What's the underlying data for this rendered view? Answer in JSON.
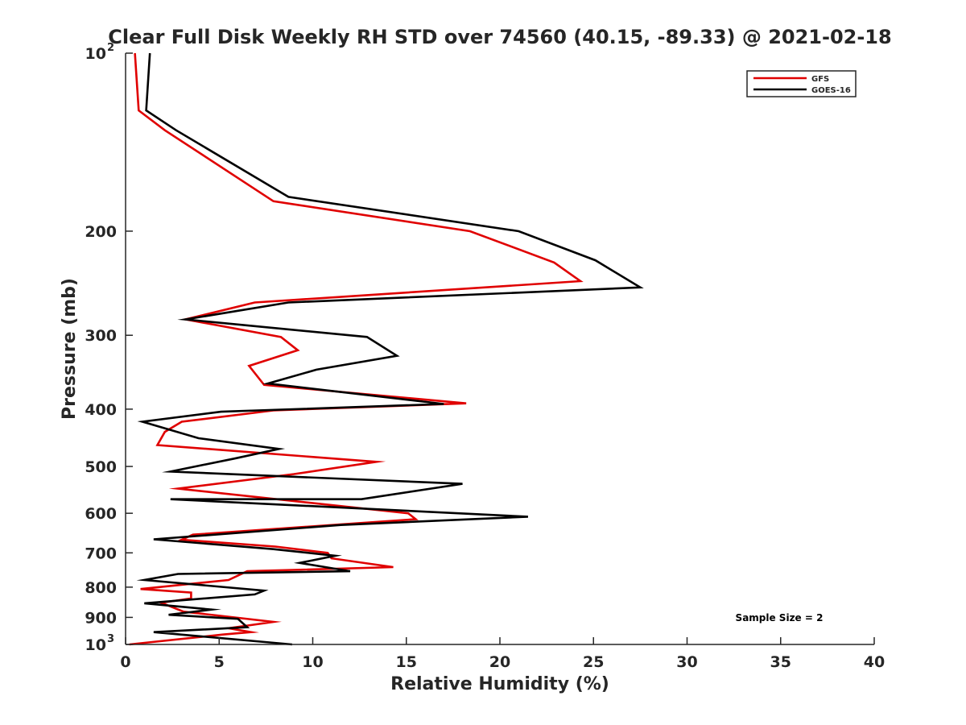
{
  "chart_data": {
    "type": "line",
    "title": "Clear Full Disk Weekly RH STD over 74560 (40.15, -89.33) @ 2021-02-18",
    "xlabel": "Relative Humidity (%)",
    "ylabel": "Pressure (mb)",
    "xlim": [
      0,
      40
    ],
    "ylim": [
      100,
      1000
    ],
    "y_scale": "log",
    "y_reversed": true,
    "grid": false,
    "x_ticks": [
      0,
      5,
      10,
      15,
      20,
      25,
      30,
      35,
      40
    ],
    "y_ticks": [
      {
        "value": 100,
        "base": "10",
        "exp": "2"
      },
      {
        "value": 200,
        "label": "200"
      },
      {
        "value": 300,
        "label": "300"
      },
      {
        "value": 400,
        "label": "400"
      },
      {
        "value": 500,
        "label": "500"
      },
      {
        "value": 600,
        "label": "600"
      },
      {
        "value": 700,
        "label": "700"
      },
      {
        "value": 800,
        "label": "800"
      },
      {
        "value": 900,
        "label": "900"
      },
      {
        "value": 1000,
        "base": "10",
        "exp": "3"
      }
    ],
    "legend_position": "top-right",
    "annotation": "Sample Size = 2",
    "series": [
      {
        "name": "GFS",
        "color": "#e00000",
        "points": [
          [
            0.5,
            100
          ],
          [
            0.7,
            125
          ],
          [
            2.1,
            135
          ],
          [
            7.9,
            178
          ],
          [
            18.4,
            200
          ],
          [
            22.9,
            226
          ],
          [
            24.3,
            243
          ],
          [
            6.9,
            264
          ],
          [
            3.2,
            282
          ],
          [
            8.3,
            302
          ],
          [
            9.2,
            318
          ],
          [
            6.6,
            338
          ],
          [
            7.4,
            364
          ],
          [
            18.2,
            391
          ],
          [
            7.9,
            402
          ],
          [
            3.0,
            420
          ],
          [
            2.1,
            437
          ],
          [
            1.7,
            460
          ],
          [
            13.4,
            491
          ],
          [
            9.0,
            515
          ],
          [
            2.8,
            545
          ],
          [
            15.1,
            600
          ],
          [
            15.5,
            614
          ],
          [
            3.6,
            652
          ],
          [
            3.0,
            665
          ],
          [
            8.0,
            683
          ],
          [
            10.8,
            700
          ],
          [
            11.0,
            715
          ],
          [
            14.3,
            740
          ],
          [
            6.5,
            752
          ],
          [
            5.5,
            778
          ],
          [
            0.8,
            806
          ],
          [
            3.5,
            817
          ],
          [
            3.5,
            836
          ],
          [
            1.9,
            850
          ],
          [
            3.1,
            880
          ],
          [
            7.9,
            916
          ],
          [
            5.5,
            939
          ],
          [
            6.7,
            953
          ],
          [
            5.2,
            962
          ],
          [
            0.2,
            1000
          ]
        ]
      },
      {
        "name": "GOES-16",
        "color": "#000000",
        "points": [
          [
            1.3,
            100
          ],
          [
            1.1,
            125
          ],
          [
            2.7,
            135
          ],
          [
            8.7,
            175
          ],
          [
            21.0,
            200
          ],
          [
            25.1,
            224
          ],
          [
            27.5,
            249
          ],
          [
            8.7,
            264
          ],
          [
            3.2,
            282
          ],
          [
            12.9,
            302
          ],
          [
            14.5,
            325
          ],
          [
            10.2,
            343
          ],
          [
            7.6,
            362
          ],
          [
            17.0,
            392
          ],
          [
            5.1,
            404
          ],
          [
            0.9,
            420
          ],
          [
            3.9,
            448
          ],
          [
            8.2,
            467
          ],
          [
            5.8,
            485
          ],
          [
            2.4,
            510
          ],
          [
            18.0,
            535
          ],
          [
            12.6,
            568
          ],
          [
            2.4,
            568
          ],
          [
            21.5,
            608
          ],
          [
            11.5,
            628
          ],
          [
            1.5,
            664
          ],
          [
            7.9,
            690
          ],
          [
            11.2,
            708
          ],
          [
            9.3,
            728
          ],
          [
            12.0,
            752
          ],
          [
            2.8,
            760
          ],
          [
            1.0,
            778
          ],
          [
            7.4,
            811
          ],
          [
            6.9,
            823
          ],
          [
            1.0,
            852
          ],
          [
            4.6,
            873
          ],
          [
            2.3,
            891
          ],
          [
            6.0,
            905
          ],
          [
            6.5,
            935
          ],
          [
            1.5,
            953
          ],
          [
            8.9,
            1000
          ]
        ]
      }
    ]
  }
}
